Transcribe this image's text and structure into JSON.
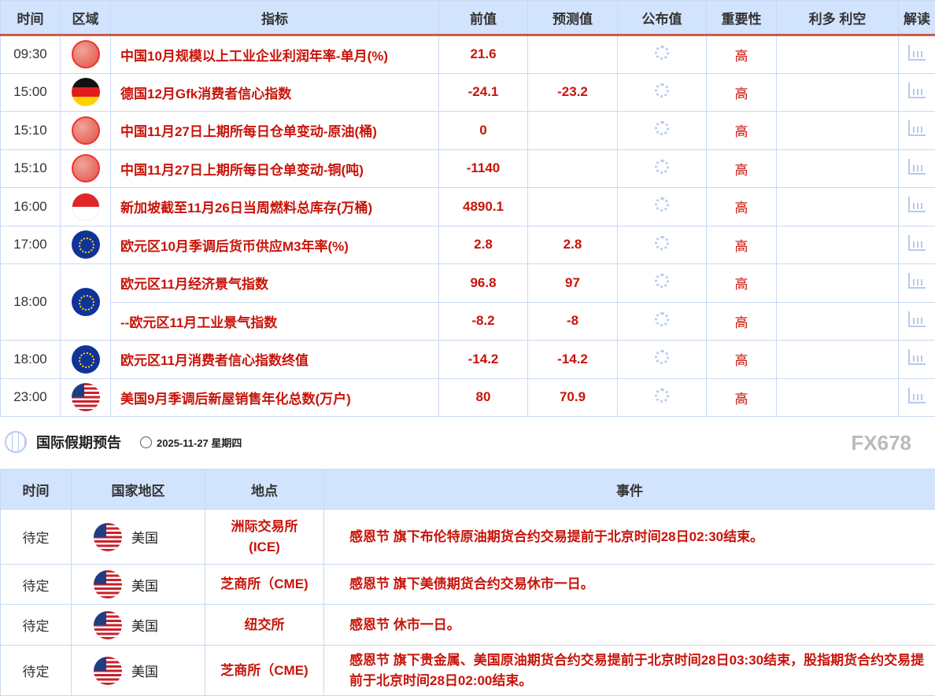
{
  "calendar": {
    "headers": [
      "时间",
      "区域",
      "指标",
      "前值",
      "预测值",
      "公布值",
      "重要性",
      "利多 利空",
      "解读"
    ],
    "rows": [
      {
        "time": "09:30",
        "flag": "cn",
        "indicator": "中国10月规模以上工业企业利润年率-单月(%)",
        "prev": "21.6",
        "forecast": "",
        "importance": "高"
      },
      {
        "time": "15:00",
        "flag": "de",
        "indicator": "德国12月Gfk消费者信心指数",
        "prev": "-24.1",
        "forecast": "-23.2",
        "importance": "高"
      },
      {
        "time": "15:10",
        "flag": "cn",
        "indicator": "中国11月27日上期所每日仓单变动-原油(桶)",
        "prev": "0",
        "forecast": "",
        "importance": "高"
      },
      {
        "time": "15:10",
        "flag": "cn",
        "indicator": "中国11月27日上期所每日仓单变动-铜(吨)",
        "prev": "-1140",
        "forecast": "",
        "importance": "高"
      },
      {
        "time": "16:00",
        "flag": "sg",
        "indicator": "新加坡截至11月26日当周燃料总库存(万桶)",
        "prev": "4890.1",
        "forecast": "",
        "importance": "高"
      },
      {
        "time": "17:00",
        "flag": "eu",
        "indicator": "欧元区10月季调后货币供应M3年率(%)",
        "prev": "2.8",
        "forecast": "2.8",
        "importance": "高"
      },
      {
        "time": "18:00",
        "flag": "eu",
        "indicator": "欧元区11月经济景气指数",
        "prev": "96.8",
        "forecast": "97",
        "importance": "高"
      },
      {
        "time": "",
        "flag": "",
        "indicator": "--欧元区11月工业景气指数",
        "prev": "-8.2",
        "forecast": "-8",
        "importance": "高"
      },
      {
        "time": "18:00",
        "flag": "eu",
        "indicator": "欧元区11月消费者信心指数终值",
        "prev": "-14.2",
        "forecast": "-14.2",
        "importance": "高"
      },
      {
        "time": "23:00",
        "flag": "us",
        "indicator": "美国9月季调后新屋销售年化总数(万户)",
        "prev": "80",
        "forecast": "70.9",
        "importance": "高"
      }
    ]
  },
  "holidays": {
    "title": "国际假期预告",
    "date": "2025-11-27 星期四",
    "headers": [
      "时间",
      "国家地区",
      "地点",
      "事件"
    ],
    "rows": [
      {
        "time": "待定",
        "country": "美国",
        "place": "洲际交易所(ICE)",
        "event": "感恩节 旗下布伦特原油期货合约交易提前于北京时间28日02:30结束。"
      },
      {
        "time": "待定",
        "country": "美国",
        "place": "芝商所（CME)",
        "event": "感恩节 旗下美债期货合约交易休市一日。"
      },
      {
        "time": "待定",
        "country": "美国",
        "place": "纽交所",
        "event": "感恩节 休市一日。"
      },
      {
        "time": "待定",
        "country": "美国",
        "place": "芝商所（CME)",
        "event": "感恩节 旗下贵金属、美国原油期货合约交易提前于北京时间28日03:30结束，股指期货合约交易提前于北京时间28日02:00结束。"
      }
    ]
  },
  "watermark": "FX678",
  "colors": {
    "accent": "#c8140a",
    "header_bg": "#d2e3fd",
    "border": "#c9d9f3"
  }
}
